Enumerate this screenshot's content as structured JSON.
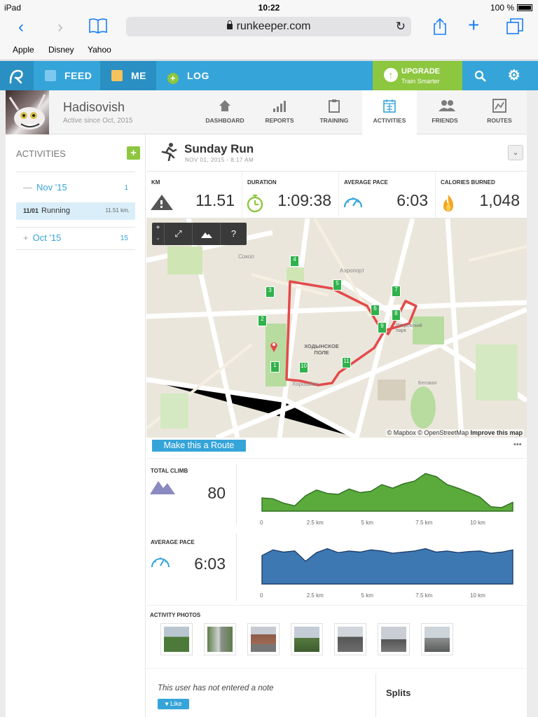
{
  "status": {
    "device": "iPad",
    "time": "10:22",
    "battery": "100 %"
  },
  "browser": {
    "url": "runkeeper.com",
    "bookmarks": [
      "Apple",
      "Disney",
      "Yahoo"
    ]
  },
  "header": {
    "feed": "FEED",
    "me": "ME",
    "log": "LOG",
    "upgrade": "UPGRADE",
    "upgrade_sub": "Train Smarter"
  },
  "profile": {
    "name": "Hadisovish",
    "since": "Active since Oct, 2015"
  },
  "tabs": [
    {
      "label": "DASHBOARD",
      "icon": "home-icon"
    },
    {
      "label": "REPORTS",
      "icon": "bar-chart-icon"
    },
    {
      "label": "TRAINING",
      "icon": "clipboard-icon"
    },
    {
      "label": "ACTIVITIES",
      "icon": "calendar-icon"
    },
    {
      "label": "FRIENDS",
      "icon": "people-icon"
    },
    {
      "label": "ROUTES",
      "icon": "route-map-icon"
    }
  ],
  "sidebar": {
    "title": "ACTIVITIES",
    "months": [
      {
        "toggle": "—",
        "label": "Nov '15",
        "count": "1"
      },
      {
        "toggle": "+",
        "label": "Oct '15",
        "count": "15"
      }
    ],
    "activity": {
      "date": "11/01",
      "type": "Running",
      "distance": "11.51 km."
    }
  },
  "activity": {
    "title": "Sunday Run",
    "date": "NOV 01, 2015  -  8:17 AM",
    "stats": [
      {
        "label": "KM",
        "value": "11.51"
      },
      {
        "label": "DURATION",
        "value": "1:09:38"
      },
      {
        "label": "AVERAGE PACE",
        "value": "6:03"
      },
      {
        "label": "CALORIES BURNED",
        "value": "1,048"
      }
    ],
    "map_attribution": "© Mapbox © OpenStreetMap",
    "map_improve": "Improve this map",
    "map_labels": [
      "Сокол",
      "Аэропорт",
      "ХОДЫНСКОЕ ПОЛЕ",
      "Хорошёво",
      "Петровский парк",
      "Беговая"
    ],
    "km_markers": [
      "1",
      "2",
      "3",
      "4",
      "5",
      "6",
      "7",
      "8",
      "9",
      "10",
      "11"
    ],
    "route_button": "Make this a Route",
    "climb": {
      "label": "TOTAL CLIMB",
      "value": "80"
    },
    "pace": {
      "label": "AVERAGE PACE",
      "value": "6:03"
    },
    "axis_ticks": [
      "0",
      "2.5 km",
      "5 km",
      "7.5 km",
      "10 km"
    ],
    "photos_title": "ACTIVITY PHOTOS",
    "note": "This user has not entered a note",
    "like": "Like",
    "splits": "Splits"
  },
  "chart_data": [
    {
      "type": "area",
      "title": "TOTAL CLIMB",
      "x": [
        0,
        0.5,
        1,
        1.5,
        2,
        2.5,
        3,
        3.5,
        4,
        4.5,
        5,
        5.5,
        6,
        6.5,
        7,
        7.5,
        8,
        8.5,
        9,
        9.5,
        10,
        10.5,
        11,
        11.51
      ],
      "values": [
        30,
        28,
        18,
        12,
        35,
        48,
        40,
        38,
        50,
        42,
        45,
        60,
        52,
        62,
        68,
        85,
        78,
        60,
        52,
        42,
        32,
        10,
        8,
        20
      ],
      "xlim": [
        0,
        11.51
      ],
      "color": "#5aab3c"
    },
    {
      "type": "area",
      "title": "AVERAGE PACE",
      "x": [
        0,
        0.5,
        1,
        1.5,
        2,
        2.5,
        3,
        3.5,
        4,
        4.5,
        5,
        5.5,
        6,
        6.5,
        7,
        7.5,
        8,
        8.5,
        9,
        9.5,
        10,
        10.5,
        11,
        11.51
      ],
      "values": [
        50,
        60,
        56,
        58,
        40,
        55,
        62,
        55,
        58,
        56,
        60,
        58,
        54,
        56,
        58,
        62,
        56,
        58,
        55,
        57,
        58,
        54,
        56,
        60
      ],
      "xlim": [
        0,
        11.51
      ],
      "color": "#3d78b3"
    }
  ]
}
